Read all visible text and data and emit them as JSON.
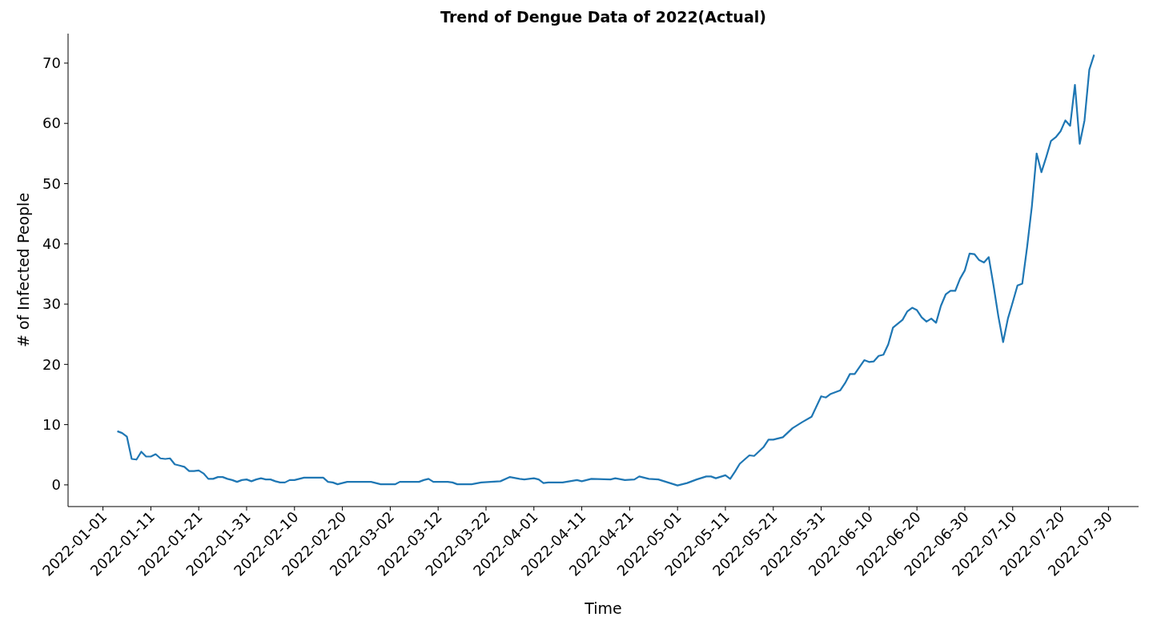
{
  "chart_data": {
    "type": "line",
    "title": "Trend of Dengue Data of 2022(Actual)",
    "xlabel": "Time",
    "ylabel": "# of Infected People",
    "xlim": [
      "2021-12-24T17:00",
      "2022-08-05T07:00"
    ],
    "xticks": [
      "2022-01-01",
      "2022-01-11",
      "2022-01-21",
      "2022-01-31",
      "2022-02-10",
      "2022-02-20",
      "2022-03-02",
      "2022-03-12",
      "2022-03-22",
      "2022-04-01",
      "2022-04-11",
      "2022-04-21",
      "2022-05-01",
      "2022-05-11",
      "2022-05-21",
      "2022-05-31",
      "2022-06-10",
      "2022-06-20",
      "2022-06-30",
      "2022-07-10",
      "2022-07-20",
      "2022-07-30"
    ],
    "ylim": [
      -3.6,
      74.9
    ],
    "yticks": [
      0,
      10,
      20,
      30,
      40,
      50,
      60,
      70
    ],
    "grid": false,
    "series": [
      {
        "color": "#1f77b4",
        "x": [
          "2022-01-04",
          "2022-01-05",
          "2022-01-06",
          "2022-01-07",
          "2022-01-08",
          "2022-01-09",
          "2022-01-10",
          "2022-01-11",
          "2022-01-12",
          "2022-01-13",
          "2022-01-14",
          "2022-01-15",
          "2022-01-16",
          "2022-01-17",
          "2022-01-18",
          "2022-01-19",
          "2022-01-20",
          "2022-01-21",
          "2022-01-22",
          "2022-01-23",
          "2022-01-24",
          "2022-01-25",
          "2022-01-26",
          "2022-01-27",
          "2022-01-28",
          "2022-01-29",
          "2022-01-30",
          "2022-01-31",
          "2022-02-01",
          "2022-02-02",
          "2022-02-03",
          "2022-02-04",
          "2022-02-05",
          "2022-02-06",
          "2022-02-07",
          "2022-02-08",
          "2022-02-09",
          "2022-02-10",
          "2022-02-11",
          "2022-02-12",
          "2022-02-16",
          "2022-02-17",
          "2022-02-18",
          "2022-02-19",
          "2022-02-20",
          "2022-02-21",
          "2022-02-26",
          "2022-02-27",
          "2022-02-28",
          "2022-03-03",
          "2022-03-04",
          "2022-03-08",
          "2022-03-09",
          "2022-03-10",
          "2022-03-11",
          "2022-03-14",
          "2022-03-15",
          "2022-03-16",
          "2022-03-19",
          "2022-03-21",
          "2022-03-25",
          "2022-03-27",
          "2022-03-29",
          "2022-03-30",
          "2022-04-01",
          "2022-04-02",
          "2022-04-03",
          "2022-04-04",
          "2022-04-07",
          "2022-04-10",
          "2022-04-11",
          "2022-04-13",
          "2022-04-17",
          "2022-04-18",
          "2022-04-20",
          "2022-04-22",
          "2022-04-23",
          "2022-04-25",
          "2022-04-27",
          "2022-04-29",
          "2022-05-01",
          "2022-05-03",
          "2022-05-05",
          "2022-05-07",
          "2022-05-08",
          "2022-05-09",
          "2022-05-11",
          "2022-05-12",
          "2022-05-13",
          "2022-05-14",
          "2022-05-16",
          "2022-05-17",
          "2022-05-19",
          "2022-05-20",
          "2022-05-21",
          "2022-05-23",
          "2022-05-25",
          "2022-05-27",
          "2022-05-29",
          "2022-05-31",
          "2022-06-01",
          "2022-06-02",
          "2022-06-04",
          "2022-06-05",
          "2022-06-06",
          "2022-06-07",
          "2022-06-09",
          "2022-06-10",
          "2022-06-11",
          "2022-06-12",
          "2022-06-13",
          "2022-06-14",
          "2022-06-15",
          "2022-06-17",
          "2022-06-18",
          "2022-06-19",
          "2022-06-20",
          "2022-06-21",
          "2022-06-22",
          "2022-06-23",
          "2022-06-24",
          "2022-06-25",
          "2022-06-26",
          "2022-06-27",
          "2022-06-28",
          "2022-06-29",
          "2022-06-30",
          "2022-07-01",
          "2022-07-02",
          "2022-07-03",
          "2022-07-04",
          "2022-07-05",
          "2022-07-06",
          "2022-07-07",
          "2022-07-08",
          "2022-07-09",
          "2022-07-10",
          "2022-07-11",
          "2022-07-12",
          "2022-07-13",
          "2022-07-14",
          "2022-07-15",
          "2022-07-16",
          "2022-07-17",
          "2022-07-18",
          "2022-07-19",
          "2022-07-20",
          "2022-07-21",
          "2022-07-22",
          "2022-07-23",
          "2022-07-24",
          "2022-07-25",
          "2022-07-26",
          "2022-07-27"
        ],
        "values": [
          8.9,
          8.6,
          8.0,
          4.3,
          4.2,
          5.5,
          4.7,
          4.7,
          5.1,
          4.4,
          4.3,
          4.4,
          3.4,
          3.2,
          3.0,
          2.3,
          2.3,
          2.4,
          1.9,
          1.0,
          1.0,
          1.3,
          1.3,
          1.0,
          0.8,
          0.5,
          0.8,
          0.9,
          0.6,
          0.9,
          1.1,
          0.9,
          0.9,
          0.6,
          0.4,
          0.4,
          0.8,
          0.8,
          1.0,
          1.2,
          1.2,
          0.5,
          0.4,
          0.1,
          0.3,
          0.5,
          0.5,
          0.3,
          0.1,
          0.1,
          0.5,
          0.5,
          0.8,
          1.0,
          0.5,
          0.5,
          0.4,
          0.1,
          0.1,
          0.4,
          0.6,
          1.3,
          1.0,
          0.9,
          1.1,
          0.9,
          0.3,
          0.4,
          0.4,
          0.8,
          0.6,
          1.0,
          0.9,
          1.1,
          0.8,
          0.9,
          1.4,
          1.0,
          0.9,
          0.4,
          -0.1,
          0.3,
          0.9,
          1.4,
          1.4,
          1.1,
          1.6,
          1.0,
          2.2,
          3.5,
          4.9,
          4.8,
          6.3,
          7.5,
          7.5,
          7.9,
          9.4,
          10.4,
          11.3,
          14.7,
          14.5,
          15.1,
          15.7,
          16.9,
          18.4,
          18.4,
          20.7,
          20.4,
          20.5,
          21.4,
          21.6,
          23.3,
          26.1,
          27.4,
          28.8,
          29.4,
          29.0,
          27.8,
          27.1,
          27.6,
          26.9,
          29.7,
          31.6,
          32.2,
          32.2,
          34.2,
          35.6,
          38.4,
          38.3,
          37.3,
          36.9,
          37.8,
          33.1,
          28.0,
          23.7,
          27.6,
          30.3,
          33.1,
          33.4,
          39.4,
          46.2,
          55.0,
          51.9,
          54.4,
          57.1,
          57.7,
          58.7,
          60.5,
          59.6,
          66.4,
          56.6,
          60.5,
          68.9,
          71.4
        ]
      }
    ]
  }
}
